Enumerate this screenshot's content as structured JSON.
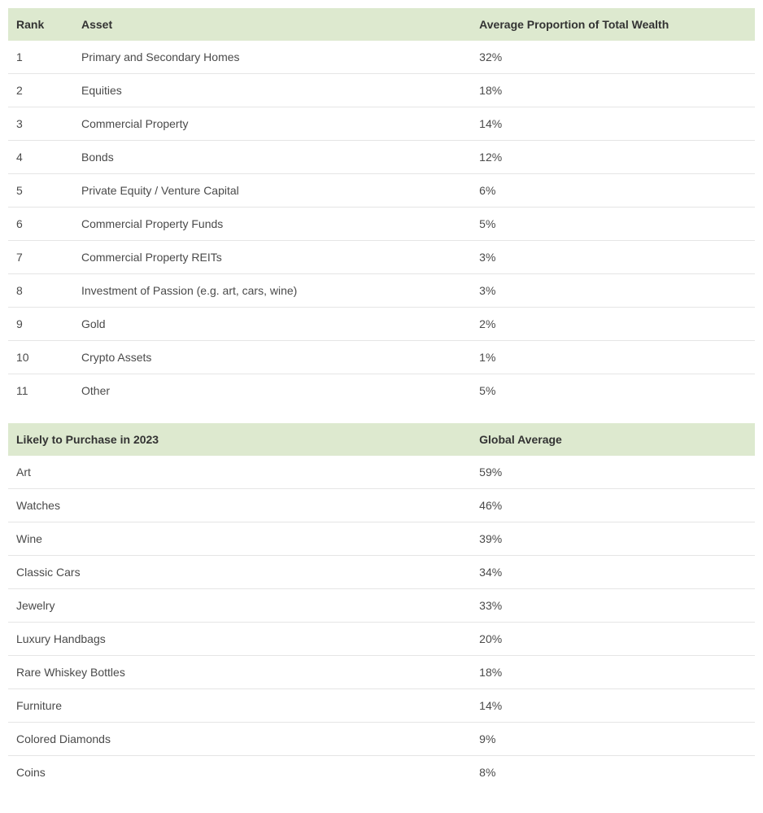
{
  "table1": {
    "type": "table",
    "header_bg": "#dde9cf",
    "row_border": "#e5e5e5",
    "text_color": "#333333",
    "font_size": 14,
    "columns": [
      "Rank",
      "Asset",
      "Average Proportion of Total Wealth"
    ],
    "rows": [
      [
        "1",
        "Primary and Secondary Homes",
        "32%"
      ],
      [
        "2",
        "Equities",
        "18%"
      ],
      [
        "3",
        "Commercial Property",
        "14%"
      ],
      [
        "4",
        "Bonds",
        "12%"
      ],
      [
        "5",
        "Private Equity / Venture Capital",
        "6%"
      ],
      [
        "6",
        "Commercial Property Funds",
        "5%"
      ],
      [
        "7",
        "Commercial Property REITs",
        "3%"
      ],
      [
        "8",
        "Investment of Passion (e.g. art, cars, wine)",
        "3%"
      ],
      [
        "9",
        "Gold",
        "2%"
      ],
      [
        "10",
        "Crypto Assets",
        "1%"
      ],
      [
        "11",
        "Other",
        "5%"
      ]
    ]
  },
  "table2": {
    "type": "table",
    "header_bg": "#dde9cf",
    "row_border": "#e5e5e5",
    "text_color": "#333333",
    "font_size": 14,
    "columns": [
      "Likely to Purchase in 2023",
      "Global Average"
    ],
    "rows": [
      [
        "Art",
        "59%"
      ],
      [
        "Watches",
        "46%"
      ],
      [
        "Wine",
        "39%"
      ],
      [
        "Classic Cars",
        "34%"
      ],
      [
        "Jewelry",
        "33%"
      ],
      [
        "Luxury Handbags",
        "20%"
      ],
      [
        "Rare Whiskey Bottles",
        "18%"
      ],
      [
        "Furniture",
        "14%"
      ],
      [
        "Colored Diamonds",
        "9%"
      ],
      [
        "Coins",
        "8%"
      ]
    ]
  }
}
